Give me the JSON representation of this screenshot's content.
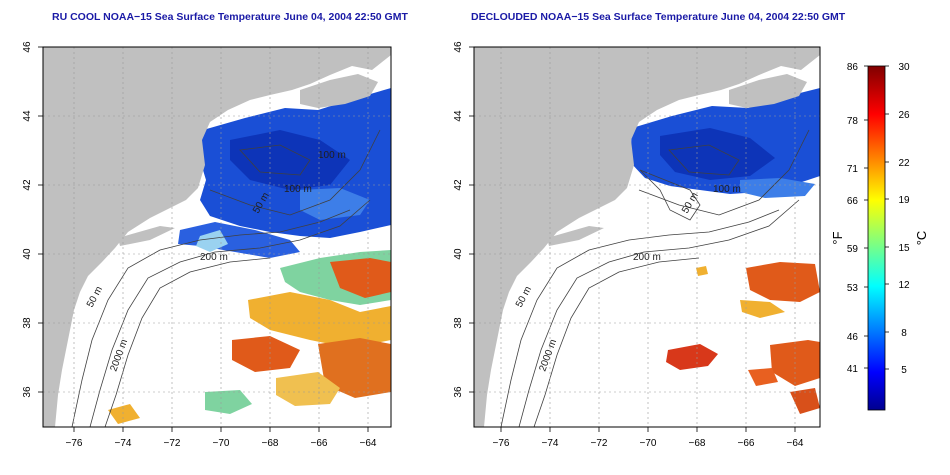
{
  "titles": {
    "left": "RU COOL NOAA−15 Sea Surface Temperature June 04, 2004 22:50 GMT",
    "right": "DECLOUDED NOAA−15 Sea Surface Temperature June 04, 2004 22:50 GMT"
  },
  "axes": {
    "x_ticks": [
      "−76",
      "−74",
      "−72",
      "−70",
      "−68",
      "−66",
      "−64"
    ],
    "y_ticks": [
      "46",
      "44",
      "42",
      "40",
      "38",
      "36"
    ]
  },
  "contour_labels": {
    "left": [
      "200 m",
      "50 m",
      "2000 m",
      "100 m",
      "50 m",
      "100 m"
    ],
    "right": [
      "200 m",
      "50 m",
      "2000 m",
      "100 m",
      "50 m"
    ]
  },
  "colorbar": {
    "fahrenheit_ticks": [
      "86",
      "78",
      "71",
      "66",
      "59",
      "53",
      "46",
      "41"
    ],
    "celsius_ticks": [
      "30",
      "26",
      "22",
      "19",
      "15",
      "12",
      "8",
      "5"
    ],
    "fahrenheit_label": "°F",
    "celsius_label": "°C"
  },
  "colors": {
    "land": "#c0c0c0",
    "cold": "#1a4fd6",
    "cool": "#4fa8e8",
    "mid": "#7fd3a0",
    "warm": "#f0b030",
    "hot": "#e05a1a",
    "title": "#1a1aa6",
    "bathymetry": "#404040"
  }
}
